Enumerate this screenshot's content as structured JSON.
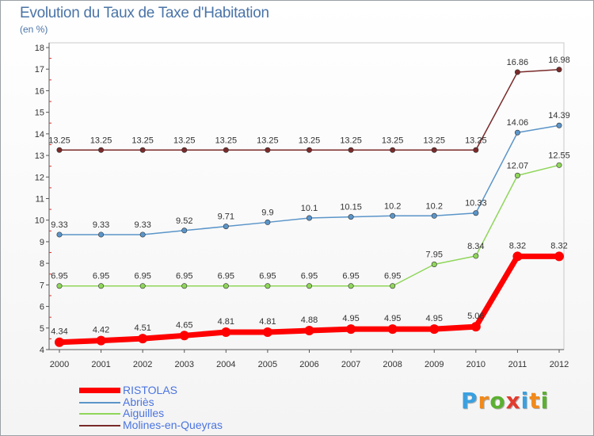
{
  "header": {
    "title": "Evolution du Taux de Taxe d'Habitation",
    "unit": "(en %)"
  },
  "logo": {
    "text": "Proxiti",
    "colors": [
      "#3aa0e0",
      "#f08a1c",
      "#5bb030",
      "#e23b2e",
      "#3aa0e0",
      "#f08a1c",
      "#5bb030"
    ]
  },
  "chart_data": {
    "type": "line",
    "title": "Evolution du Taux de Taxe d'Habitation",
    "ylabel": "(en %)",
    "xlabel": "",
    "x": [
      2000,
      2001,
      2002,
      2003,
      2004,
      2005,
      2006,
      2007,
      2008,
      2009,
      2010,
      2011,
      2012
    ],
    "ylim": [
      4,
      18
    ],
    "yticks": [
      4,
      5,
      6,
      7,
      8,
      9,
      10,
      11,
      12,
      13,
      14,
      15,
      16,
      17,
      18
    ],
    "legend_position": "bottom-left",
    "grid": false,
    "series": [
      {
        "name": "Molines-en-Queyras",
        "color": "#7a2a2a",
        "values": [
          13.25,
          13.25,
          13.25,
          13.25,
          13.25,
          13.25,
          13.25,
          13.25,
          13.25,
          13.25,
          13.25,
          16.86,
          16.98
        ],
        "labels": [
          "13.25",
          "13.25",
          "13.25",
          "13.25",
          "13.25",
          "13.25",
          "13.25",
          "13.25",
          "13.25",
          "13.25",
          "13.25",
          "16.86",
          "16.98"
        ]
      },
      {
        "name": "Abriès",
        "color": "#5b95c9",
        "values": [
          9.33,
          9.33,
          9.33,
          9.52,
          9.71,
          9.9,
          10.1,
          10.15,
          10.2,
          10.2,
          10.33,
          14.06,
          14.39
        ],
        "labels": [
          "9.33",
          "9.33",
          "9.33",
          "9.52",
          "9.71",
          "9.9",
          "10.1",
          "10.15",
          "10.2",
          "10.2",
          "10.33",
          "14.06",
          "14.39"
        ]
      },
      {
        "name": "Aiguilles",
        "color": "#8fd65a",
        "values": [
          6.95,
          6.95,
          6.95,
          6.95,
          6.95,
          6.95,
          6.95,
          6.95,
          6.95,
          7.95,
          8.34,
          12.07,
          12.55
        ],
        "labels": [
          "6.95",
          "6.95",
          "6.95",
          "6.95",
          "6.95",
          "6.95",
          "6.95",
          "6.95",
          "6.95",
          "7.95",
          "8.34",
          "12.07",
          "12.55"
        ]
      },
      {
        "name": "RISTOLAS",
        "color": "#ff0000",
        "values": [
          4.34,
          4.42,
          4.51,
          4.65,
          4.81,
          4.81,
          4.88,
          4.95,
          4.95,
          4.95,
          5.06,
          8.32,
          8.32
        ],
        "labels": [
          "4.34",
          "4.42",
          "4.51",
          "4.65",
          "4.81",
          "4.81",
          "4.88",
          "4.95",
          "4.95",
          "4.95",
          "5.06",
          "8.32",
          "8.32"
        ]
      }
    ]
  },
  "legend": [
    {
      "label": "RISTOLAS",
      "color": "#ff0000"
    },
    {
      "label": "Abriès",
      "color": "#5b95c9"
    },
    {
      "label": "Aiguilles",
      "color": "#8fd65a"
    },
    {
      "label": "Molines-en-Queyras",
      "color": "#7a2a2a"
    }
  ]
}
